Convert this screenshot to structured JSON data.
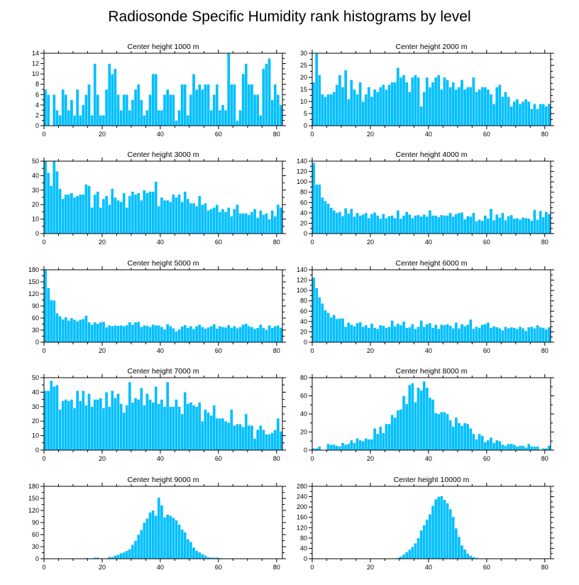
{
  "title": "Radiosonde Specific Humidity rank histograms by level",
  "chart_data": [
    {
      "type": "bar",
      "title": "Center height 1000 m",
      "xlim": [
        0,
        82
      ],
      "ylim": [
        0,
        14
      ],
      "xticks": [
        0,
        20,
        40,
        60,
        80
      ],
      "yticks": [
        0,
        2,
        4,
        6,
        8,
        10,
        12,
        14
      ],
      "values": [
        7,
        6,
        0,
        6,
        3,
        2,
        7,
        6,
        3,
        5,
        2,
        7,
        2,
        4,
        6,
        8,
        2,
        12,
        6,
        2,
        2,
        7,
        12,
        10,
        11,
        6,
        3,
        6,
        6,
        3,
        5,
        7,
        8,
        5,
        2,
        3,
        6,
        10,
        10,
        3,
        3,
        6,
        7,
        6,
        6,
        1,
        3,
        8,
        8,
        2,
        6,
        10,
        7,
        8,
        7,
        8,
        8,
        3,
        6,
        8,
        3,
        4,
        3,
        14,
        8,
        8,
        1,
        3,
        10,
        12,
        8,
        8,
        6,
        6,
        2,
        11,
        12,
        13,
        5,
        8,
        6,
        4
      ]
    },
    {
      "type": "bar",
      "title": "Center height 2000 m",
      "xlim": [
        0,
        82
      ],
      "ylim": [
        0,
        30
      ],
      "xticks": [
        0,
        20,
        40,
        60,
        80
      ],
      "yticks": [
        0,
        5,
        10,
        15,
        20,
        25,
        30
      ],
      "values": [
        18,
        30,
        21,
        13,
        12,
        13,
        13,
        14,
        17,
        21,
        16,
        23,
        11,
        19,
        15,
        13,
        18,
        10,
        13,
        16,
        12,
        15,
        14,
        16,
        17,
        15,
        17,
        18,
        18,
        24,
        20,
        21,
        18,
        14,
        20,
        21,
        20,
        8,
        14,
        20,
        16,
        18,
        20,
        21,
        15,
        20,
        19,
        16,
        18,
        15,
        16,
        19,
        15,
        16,
        16,
        20,
        14,
        15,
        16,
        16,
        15,
        13,
        9,
        16,
        17,
        12,
        14,
        12,
        8,
        10,
        11,
        9,
        10,
        11,
        10,
        7,
        9,
        7,
        9,
        9,
        8,
        9
      ]
    },
    {
      "type": "bar",
      "title": "Center height 3000 m",
      "xlim": [
        0,
        82
      ],
      "ylim": [
        0,
        50
      ],
      "xticks": [
        0,
        20,
        40,
        60,
        80
      ],
      "yticks": [
        0,
        10,
        20,
        30,
        40,
        50
      ],
      "values": [
        50,
        42,
        33,
        51,
        43,
        31,
        24,
        27,
        27,
        28,
        25,
        26,
        27,
        27,
        34,
        33,
        18,
        27,
        29,
        18,
        24,
        26,
        20,
        31,
        25,
        23,
        22,
        28,
        18,
        26,
        29,
        27,
        28,
        23,
        30,
        28,
        29,
        29,
        36,
        19,
        25,
        23,
        23,
        22,
        27,
        25,
        27,
        22,
        29,
        24,
        21,
        21,
        19,
        26,
        20,
        21,
        16,
        17,
        18,
        20,
        15,
        17,
        15,
        18,
        12,
        17,
        20,
        14,
        14,
        14,
        13,
        15,
        17,
        11,
        16,
        13,
        14,
        10,
        16,
        12,
        20,
        18
      ]
    },
    {
      "type": "bar",
      "title": "Center height 4000 m",
      "xlim": [
        0,
        82
      ],
      "ylim": [
        0,
        140
      ],
      "xticks": [
        0,
        20,
        40,
        60,
        80
      ],
      "yticks": [
        0,
        20,
        40,
        60,
        80,
        100,
        120,
        140
      ],
      "values": [
        137,
        95,
        95,
        70,
        63,
        58,
        50,
        45,
        40,
        42,
        34,
        49,
        39,
        48,
        33,
        40,
        35,
        37,
        40,
        30,
        38,
        41,
        35,
        29,
        38,
        30,
        34,
        35,
        30,
        45,
        29,
        35,
        42,
        37,
        30,
        35,
        36,
        33,
        37,
        33,
        45,
        35,
        35,
        32,
        36,
        35,
        35,
        40,
        33,
        38,
        40,
        41,
        28,
        34,
        33,
        40,
        24,
        27,
        25,
        35,
        29,
        48,
        26,
        37,
        31,
        40,
        26,
        34,
        36,
        29,
        30,
        27,
        31,
        30,
        29,
        25,
        46,
        27,
        44,
        32,
        42,
        38
      ]
    },
    {
      "type": "bar",
      "title": "Center height 5000 m",
      "xlim": [
        0,
        82
      ],
      "ylim": [
        0,
        180
      ],
      "xticks": [
        0,
        20,
        40,
        60,
        80
      ],
      "yticks": [
        0,
        30,
        60,
        90,
        120,
        150,
        180
      ],
      "values": [
        180,
        135,
        105,
        104,
        72,
        65,
        57,
        62,
        54,
        60,
        56,
        52,
        56,
        58,
        66,
        50,
        44,
        50,
        46,
        50,
        51,
        37,
        42,
        40,
        42,
        41,
        42,
        40,
        43,
        50,
        44,
        50,
        51,
        38,
        42,
        41,
        38,
        44,
        42,
        42,
        38,
        32,
        45,
        40,
        35,
        27,
        32,
        39,
        43,
        36,
        40,
        33,
        40,
        44,
        38,
        34,
        37,
        40,
        45,
        34,
        40,
        38,
        37,
        43,
        36,
        40,
        35,
        38,
        44,
        46,
        40,
        38,
        33,
        36,
        44,
        36,
        31,
        42,
        36,
        40,
        42,
        36
      ]
    },
    {
      "type": "bar",
      "title": "Center height 6000 m",
      "xlim": [
        0,
        82
      ],
      "ylim": [
        0,
        140
      ],
      "xticks": [
        0,
        20,
        40,
        60,
        80
      ],
      "yticks": [
        0,
        20,
        40,
        60,
        80,
        100,
        120,
        140
      ],
      "values": [
        125,
        105,
        87,
        75,
        62,
        57,
        48,
        53,
        45,
        46,
        46,
        30,
        38,
        34,
        31,
        37,
        39,
        30,
        33,
        28,
        36,
        28,
        26,
        33,
        32,
        28,
        30,
        42,
        31,
        36,
        33,
        40,
        28,
        29,
        35,
        26,
        30,
        42,
        30,
        35,
        37,
        28,
        34,
        26,
        34,
        33,
        35,
        32,
        27,
        38,
        27,
        35,
        31,
        34,
        44,
        26,
        30,
        28,
        34,
        35,
        38,
        28,
        31,
        29,
        27,
        23,
        30,
        27,
        29,
        28,
        26,
        30,
        27,
        22,
        29,
        30,
        27,
        33,
        29,
        28,
        25,
        29
      ]
    },
    {
      "type": "bar",
      "title": "Center height 7000 m",
      "xlim": [
        0,
        82
      ],
      "ylim": [
        0,
        50
      ],
      "xticks": [
        0,
        20,
        40,
        60,
        80
      ],
      "yticks": [
        0,
        10,
        20,
        30,
        40,
        50
      ],
      "values": [
        41,
        41,
        48,
        44,
        45,
        28,
        34,
        35,
        34,
        35,
        29,
        41,
        34,
        41,
        31,
        39,
        30,
        35,
        35,
        36,
        29,
        40,
        30,
        41,
        36,
        39,
        32,
        26,
        31,
        47,
        33,
        36,
        35,
        43,
        31,
        39,
        35,
        33,
        44,
        32,
        35,
        30,
        47,
        30,
        30,
        35,
        30,
        25,
        40,
        32,
        33,
        31,
        30,
        33,
        20,
        28,
        26,
        24,
        31,
        22,
        22,
        22,
        20,
        19,
        28,
        17,
        18,
        18,
        16,
        25,
        17,
        17,
        8,
        14,
        17,
        14,
        11,
        11,
        12,
        14,
        22,
        13
      ]
    },
    {
      "type": "bar",
      "title": "Center height 8000 m",
      "xlim": [
        0,
        82
      ],
      "ylim": [
        0,
        80
      ],
      "xticks": [
        0,
        20,
        40,
        60,
        80
      ],
      "yticks": [
        0,
        20,
        40,
        60,
        80
      ],
      "values": [
        2,
        2,
        4,
        0,
        0,
        7,
        6,
        6,
        5,
        4,
        8,
        6,
        7,
        11,
        8,
        13,
        11,
        10,
        13,
        12,
        12,
        24,
        18,
        26,
        19,
        29,
        29,
        39,
        36,
        44,
        45,
        60,
        51,
        72,
        74,
        53,
        69,
        66,
        76,
        69,
        58,
        56,
        41,
        40,
        42,
        42,
        40,
        33,
        26,
        36,
        30,
        27,
        30,
        29,
        24,
        18,
        12,
        18,
        16,
        9,
        11,
        14,
        8,
        11,
        10,
        6,
        5,
        7,
        7,
        6,
        4,
        5,
        5,
        3,
        7,
        4,
        4,
        4,
        0,
        2,
        2,
        5
      ]
    },
    {
      "type": "bar",
      "title": "Center height 9000 m",
      "xlim": [
        0,
        82
      ],
      "ylim": [
        0,
        180
      ],
      "xticks": [
        0,
        20,
        40,
        60,
        80
      ],
      "yticks": [
        0,
        30,
        60,
        90,
        120,
        150,
        180
      ],
      "values": [
        0,
        0,
        0,
        0,
        0,
        0,
        0,
        0,
        0,
        0,
        0,
        0,
        0,
        0,
        2,
        0,
        0,
        3,
        3,
        0,
        0,
        0,
        5,
        4,
        8,
        10,
        14,
        16,
        20,
        24,
        35,
        45,
        60,
        72,
        90,
        100,
        115,
        120,
        107,
        152,
        133,
        103,
        110,
        107,
        102,
        96,
        85,
        73,
        66,
        49,
        42,
        28,
        20,
        16,
        12,
        8,
        4,
        3,
        3,
        3,
        2,
        1,
        1,
        1,
        0,
        0,
        0,
        0,
        0,
        0,
        0,
        0,
        0,
        0,
        0,
        0,
        0,
        0,
        0,
        0,
        0,
        0
      ]
    },
    {
      "type": "bar",
      "title": "Center height 10000 m",
      "xlim": [
        0,
        82
      ],
      "ylim": [
        0,
        280
      ],
      "xticks": [
        0,
        20,
        40,
        60,
        80
      ],
      "yticks": [
        0,
        40,
        80,
        120,
        160,
        200,
        240,
        280
      ],
      "values": [
        0,
        0,
        0,
        0,
        0,
        0,
        0,
        0,
        0,
        0,
        0,
        0,
        0,
        0,
        0,
        0,
        0,
        0,
        0,
        0,
        0,
        0,
        0,
        0,
        0,
        0,
        0,
        0,
        0,
        4,
        9,
        17,
        26,
        35,
        46,
        60,
        80,
        110,
        130,
        152,
        172,
        205,
        230,
        240,
        243,
        228,
        215,
        192,
        162,
        118,
        85,
        52,
        36,
        20,
        12,
        6,
        4,
        2,
        1,
        1,
        0,
        0,
        0,
        0,
        0,
        0,
        0,
        0,
        0,
        0,
        0,
        0,
        0,
        0,
        0,
        0,
        0,
        0,
        0,
        0,
        0,
        0
      ]
    }
  ]
}
